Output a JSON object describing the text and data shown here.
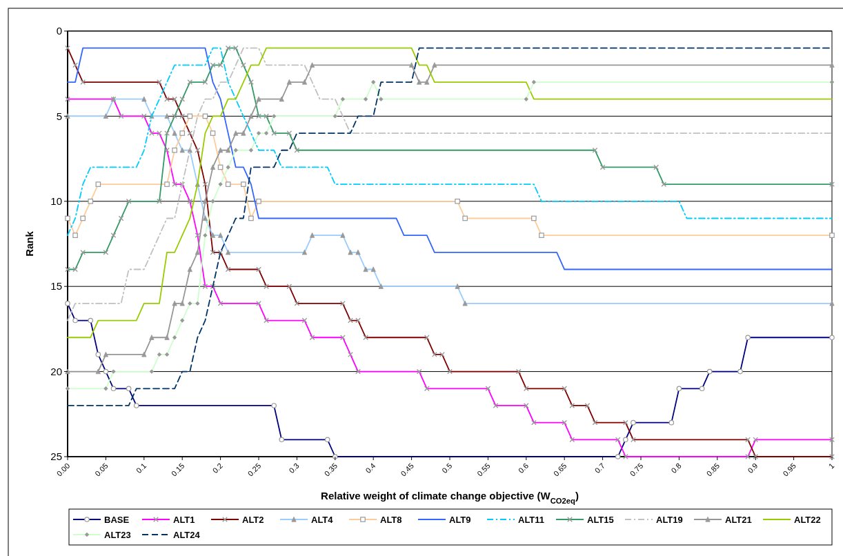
{
  "chart_data": {
    "type": "line",
    "xlabel": "Relative weight of climate change objective (W$_{CO2eq}$)",
    "ylabel": "Rank",
    "xlim": [
      0,
      1
    ],
    "xticks": [
      {
        "value": 0,
        "label": "0.00"
      },
      0.05,
      0.1,
      0.15,
      0.2,
      0.25,
      0.3,
      0.35,
      0.4,
      0.45,
      0.5,
      0.55,
      0.6,
      0.65,
      0.7,
      0.75,
      0.8,
      0.85,
      0.9,
      0.95,
      1
    ],
    "ylim": [
      25,
      0
    ],
    "yticks": [
      0,
      5,
      10,
      15,
      20,
      25
    ],
    "grid": "y",
    "legend": "bottom",
    "series": [
      {
        "name": "BASE",
        "color": "#000080",
        "marker": "circle",
        "line_style": "solid",
        "x": [
          0,
          0.01,
          0.03,
          0.04,
          0.05,
          0.06,
          0.08,
          0.09,
          0.27,
          0.28,
          0.34,
          0.35,
          0.72,
          0.73,
          0.74,
          0.79,
          0.8,
          0.83,
          0.84,
          0.88,
          0.89,
          1
        ],
        "values": [
          16,
          17,
          17,
          19,
          20,
          21,
          21,
          22,
          22,
          24,
          24,
          25,
          25,
          24,
          23,
          23,
          21,
          21,
          20,
          20,
          18,
          18
        ]
      },
      {
        "name": "ALT1",
        "color": "#ff00ff",
        "marker": "cross",
        "line_style": "solid",
        "x": [
          0,
          0.06,
          0.07,
          0.1,
          0.11,
          0.12,
          0.13,
          0.14,
          0.15,
          0.16,
          0.17,
          0.18,
          0.19,
          0.2,
          0.25,
          0.26,
          0.31,
          0.32,
          0.36,
          0.37,
          0.38,
          0.46,
          0.47,
          0.55,
          0.56,
          0.6,
          0.61,
          0.65,
          0.66,
          0.72,
          0.73,
          0.89,
          0.9,
          1
        ],
        "values": [
          4,
          4,
          5,
          5,
          6,
          6,
          7,
          9,
          9,
          10,
          12,
          15,
          15,
          16,
          16,
          17,
          17,
          18,
          18,
          19,
          20,
          20,
          21,
          21,
          22,
          22,
          23,
          23,
          24,
          24,
          25,
          25,
          24,
          24
        ]
      },
      {
        "name": "ALT2",
        "color": "#800000",
        "marker": "cross",
        "line_style": "solid",
        "x": [
          0,
          0.01,
          0.02,
          0.12,
          0.13,
          0.14,
          0.15,
          0.16,
          0.17,
          0.18,
          0.19,
          0.2,
          0.21,
          0.25,
          0.26,
          0.29,
          0.3,
          0.36,
          0.37,
          0.38,
          0.39,
          0.47,
          0.48,
          0.49,
          0.5,
          0.59,
          0.6,
          0.65,
          0.66,
          0.68,
          0.69,
          0.73,
          0.74,
          0.89,
          0.9,
          1
        ],
        "values": [
          1,
          2,
          3,
          3,
          4,
          4,
          5,
          6,
          7,
          9,
          13,
          13,
          14,
          14,
          15,
          15,
          16,
          16,
          17,
          17,
          18,
          18,
          19,
          19,
          20,
          20,
          21,
          21,
          22,
          22,
          23,
          23,
          24,
          24,
          25,
          25
        ]
      },
      {
        "name": "ALT4",
        "color": "#99ccff",
        "marker": "triangle",
        "line_style": "solid",
        "x": [
          0,
          0.05,
          0.06,
          0.1,
          0.11,
          0.13,
          0.14,
          0.15,
          0.16,
          0.17,
          0.18,
          0.19,
          0.2,
          0.21,
          0.31,
          0.32,
          0.36,
          0.37,
          0.38,
          0.39,
          0.4,
          0.41,
          0.51,
          0.52,
          1
        ],
        "values": [
          5,
          5,
          4,
          4,
          5,
          5,
          6,
          7,
          7,
          9,
          11,
          12,
          12,
          13,
          13,
          12,
          12,
          13,
          13,
          14,
          14,
          15,
          15,
          16,
          16
        ]
      },
      {
        "name": "ALT8",
        "color": "#ffcc99",
        "marker": "square",
        "line_style": "solid",
        "x": [
          0,
          0.01,
          0.02,
          0.03,
          0.04,
          0.13,
          0.14,
          0.15,
          0.16,
          0.18,
          0.19,
          0.2,
          0.21,
          0.23,
          0.24,
          0.25,
          0.51,
          0.52,
          0.61,
          0.62,
          1
        ],
        "values": [
          11,
          12,
          11,
          10,
          9,
          9,
          7,
          6,
          5,
          5,
          6,
          8,
          9,
          9,
          11,
          10,
          10,
          11,
          11,
          12,
          12
        ]
      },
      {
        "name": "ALT9",
        "color": "#3366ff",
        "marker": "none",
        "line_style": "solid",
        "x": [
          0,
          0.01,
          0.02,
          0.18,
          0.19,
          0.2,
          0.21,
          0.22,
          0.23,
          0.24,
          0.25,
          0.43,
          0.44,
          0.47,
          0.48,
          0.64,
          0.65,
          1
        ],
        "values": [
          3,
          3,
          1,
          1,
          3,
          4,
          6,
          8,
          8,
          9,
          11,
          11,
          12,
          12,
          13,
          13,
          14,
          14
        ]
      },
      {
        "name": "ALT11",
        "color": "#00ccff",
        "marker": "none",
        "line_style": "dashdot",
        "x": [
          0,
          0.01,
          0.02,
          0.03,
          0.09,
          0.1,
          0.11,
          0.12,
          0.13,
          0.14,
          0.18,
          0.19,
          0.2,
          0.21,
          0.22,
          0.23,
          0.24,
          0.25,
          0.27,
          0.28,
          0.34,
          0.35,
          0.61,
          0.62,
          0.8,
          0.81,
          1
        ],
        "values": [
          12,
          11,
          9,
          8,
          8,
          7,
          5,
          4,
          3,
          2,
          2,
          1,
          1,
          3,
          4,
          5,
          6,
          7,
          7,
          8,
          8,
          9,
          9,
          10,
          10,
          11,
          11
        ]
      },
      {
        "name": "ALT15",
        "color": "#339966",
        "marker": "cross",
        "line_style": "solid",
        "x": [
          0,
          0.01,
          0.02,
          0.05,
          0.06,
          0.07,
          0.08,
          0.12,
          0.13,
          0.14,
          0.15,
          0.16,
          0.18,
          0.19,
          0.2,
          0.21,
          0.22,
          0.23,
          0.24,
          0.25,
          0.26,
          0.27,
          0.29,
          0.3,
          0.69,
          0.7,
          0.77,
          0.78,
          1
        ],
        "values": [
          14,
          14,
          13,
          13,
          12,
          11,
          10,
          10,
          6,
          5,
          4,
          3,
          3,
          2,
          2,
          1,
          1,
          2,
          3,
          5,
          5,
          6,
          6,
          7,
          7,
          8,
          8,
          9,
          9
        ]
      },
      {
        "name": "ALT19",
        "color": "#c0c0c0",
        "marker": "none",
        "line_style": "dashdot",
        "x": [
          0,
          0.01,
          0.07,
          0.08,
          0.1,
          0.11,
          0.12,
          0.13,
          0.14,
          0.15,
          0.16,
          0.17,
          0.18,
          0.19,
          0.2,
          0.21,
          0.22,
          0.23,
          0.25,
          0.26,
          0.31,
          0.32,
          0.33,
          0.35,
          0.36,
          0.37,
          1
        ],
        "values": [
          17,
          16,
          16,
          14,
          14,
          13,
          12,
          11,
          11,
          9,
          7,
          5,
          4,
          4,
          3,
          3,
          2,
          1,
          1,
          2,
          2,
          3,
          4,
          4,
          5,
          6,
          6
        ]
      },
      {
        "name": "ALT21",
        "color": "#969696",
        "marker": "triangle",
        "line_style": "solid",
        "x": [
          0,
          0.04,
          0.05,
          0.1,
          0.11,
          0.13,
          0.14,
          0.15,
          0.16,
          0.17,
          0.18,
          0.19,
          0.2,
          0.21,
          0.22,
          0.23,
          0.24,
          0.25,
          0.28,
          0.29,
          0.31,
          0.32,
          0.45,
          0.46,
          0.47,
          0.48,
          1
        ],
        "values": [
          20,
          20,
          19,
          19,
          18,
          18,
          16,
          16,
          14,
          13,
          10,
          8,
          7,
          7,
          6,
          6,
          5,
          4,
          4,
          3,
          3,
          2,
          2,
          3,
          3,
          2,
          2
        ]
      },
      {
        "name": "ALT22",
        "color": "#99cc00",
        "marker": "none",
        "line_style": "solid",
        "x": [
          0,
          0.03,
          0.04,
          0.09,
          0.1,
          0.12,
          0.13,
          0.14,
          0.15,
          0.16,
          0.17,
          0.18,
          0.19,
          0.2,
          0.21,
          0.22,
          0.23,
          0.24,
          0.25,
          0.26,
          0.45,
          0.46,
          0.47,
          0.48,
          0.6,
          0.61,
          1
        ],
        "values": [
          18,
          18,
          17,
          17,
          16,
          16,
          13,
          13,
          12,
          11,
          9,
          6,
          5,
          5,
          4,
          4,
          3,
          2,
          2,
          1,
          1,
          2,
          2,
          3,
          3,
          4,
          4
        ]
      },
      {
        "name": "ALT23",
        "color": "#ccffcc",
        "marker": "diamond",
        "line_style": "solid",
        "x": [
          0,
          0.05,
          0.06,
          0.11,
          0.12,
          0.13,
          0.14,
          0.15,
          0.16,
          0.17,
          0.18,
          0.19,
          0.2,
          0.21,
          0.22,
          0.24,
          0.25,
          0.26,
          0.27,
          0.35,
          0.36,
          0.39,
          0.4,
          0.41,
          0.6,
          0.61,
          1
        ],
        "values": [
          21,
          21,
          20,
          20,
          19,
          19,
          18,
          17,
          16,
          16,
          12,
          10,
          9,
          8,
          7,
          7,
          6,
          6,
          5,
          5,
          4,
          4,
          3,
          4,
          4,
          3,
          3
        ]
      },
      {
        "name": "ALT24",
        "color": "#003366",
        "marker": "none",
        "line_style": "dashed",
        "x": [
          0,
          0.08,
          0.09,
          0.14,
          0.15,
          0.16,
          0.17,
          0.18,
          0.19,
          0.2,
          0.21,
          0.22,
          0.23,
          0.24,
          0.27,
          0.28,
          0.29,
          0.3,
          0.37,
          0.38,
          0.4,
          0.41,
          0.45,
          0.46,
          1
        ],
        "values": [
          22,
          22,
          21,
          21,
          20,
          20,
          18,
          17,
          15,
          13,
          12,
          11,
          11,
          8,
          8,
          7,
          7,
          6,
          6,
          5,
          5,
          3,
          3,
          1,
          1
        ]
      }
    ]
  }
}
